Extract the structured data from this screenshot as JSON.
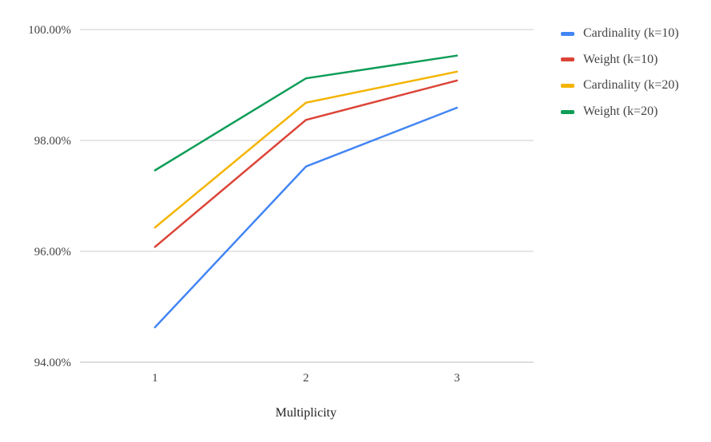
{
  "chart_data": {
    "type": "line",
    "title": "",
    "xlabel": "Multiplicity",
    "ylabel": "",
    "categories": [
      "1",
      "2",
      "3"
    ],
    "ylim": [
      94,
      100
    ],
    "yticks": [
      94,
      96,
      98,
      100
    ],
    "ytick_labels": [
      "94.00%",
      "96.00%",
      "98.00%",
      "100.00%"
    ],
    "grid": true,
    "legend_position": "right",
    "series": [
      {
        "name": "Cardinality (k=10)",
        "color": "#4285F4",
        "values": [
          94.63,
          97.53,
          98.59
        ]
      },
      {
        "name": "Weight (k=10)",
        "color": "#DB4437",
        "values": [
          96.08,
          98.37,
          99.08
        ]
      },
      {
        "name": "Cardinality (k=20)",
        "color": "#F4B400",
        "values": [
          96.43,
          98.68,
          99.24
        ]
      },
      {
        "name": "Weight (k=20)",
        "color": "#0F9D58",
        "values": [
          97.46,
          99.12,
          99.53
        ]
      }
    ]
  }
}
